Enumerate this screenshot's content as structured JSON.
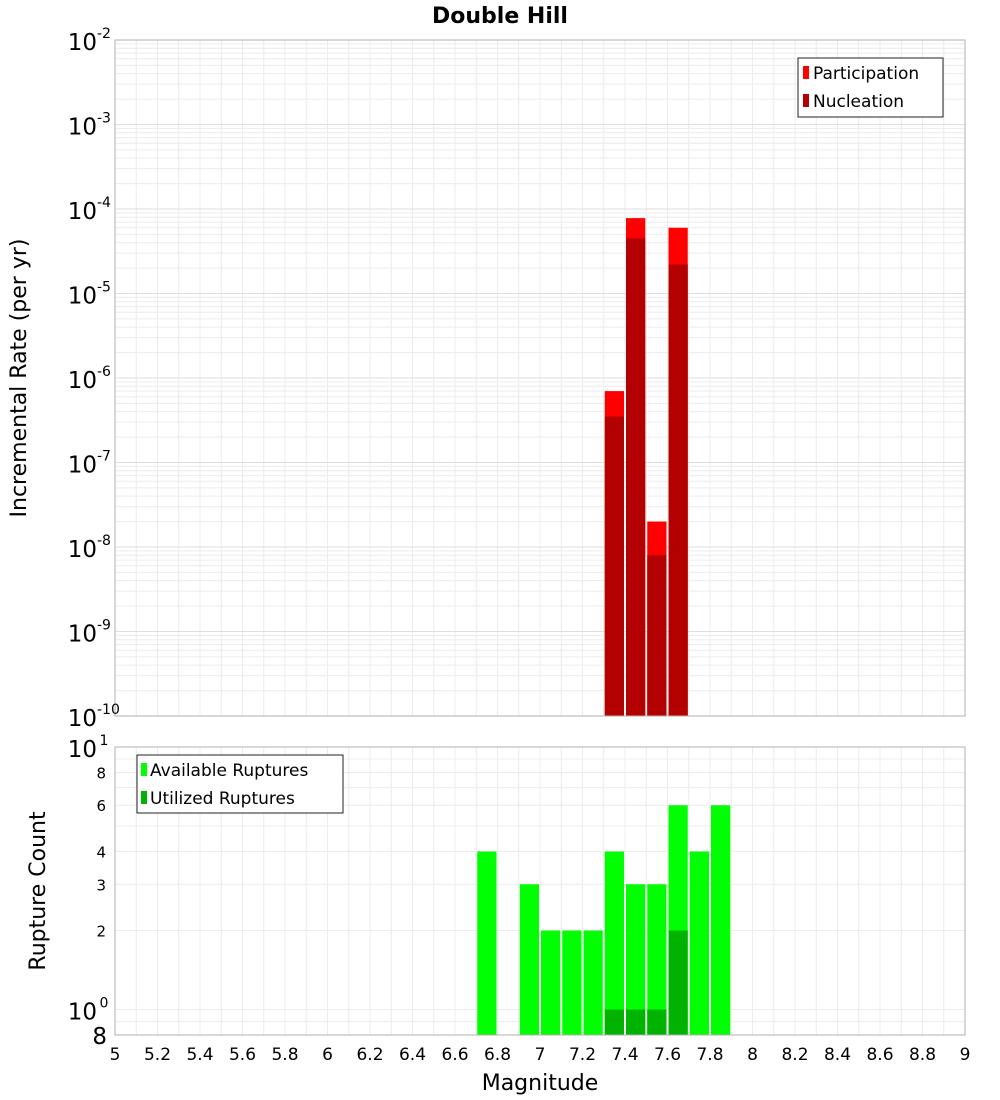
{
  "chart_data": [
    {
      "type": "bar",
      "title": "Double Hill",
      "xlabel": "",
      "ylabel": "Incremental Rate (per yr)",
      "yscale": "log",
      "ylim": [
        1e-10,
        0.01
      ],
      "xlim": [
        5,
        9
      ],
      "y_ticks": [
        {
          "base": "10",
          "exp": "-2",
          "value": 0.01
        },
        {
          "base": "10",
          "exp": "-3",
          "value": 0.001
        },
        {
          "base": "10",
          "exp": "-4",
          "value": 0.0001
        },
        {
          "base": "10",
          "exp": "-5",
          "value": 1e-05
        },
        {
          "base": "10",
          "exp": "-6",
          "value": 1e-06
        },
        {
          "base": "10",
          "exp": "-7",
          "value": 1e-07
        },
        {
          "base": "10",
          "exp": "-8",
          "value": 1e-08
        },
        {
          "base": "10",
          "exp": "-9",
          "value": 1e-09
        },
        {
          "base": "10",
          "exp": "-10",
          "value": 1e-10
        }
      ],
      "bar_width": 0.1,
      "legend_position": "top-right",
      "series": [
        {
          "name": "Participation",
          "color": "#ff0000",
          "x": [
            7.35,
            7.45,
            7.55,
            7.65
          ],
          "values": [
            7e-07,
            7.8e-05,
            2e-08,
            6e-05
          ]
        },
        {
          "name": "Nucleation",
          "color": "#b30000",
          "x": [
            7.35,
            7.45,
            7.55,
            7.65
          ],
          "values": [
            3.5e-07,
            4.5e-05,
            8e-09,
            2.2e-05
          ]
        }
      ]
    },
    {
      "type": "bar",
      "xlabel": "Magnitude",
      "ylabel": "Rupture Count",
      "yscale": "log",
      "ylim": [
        0.8,
        10
      ],
      "xlim": [
        5,
        9
      ],
      "x_ticks": [
        "5",
        "5.2",
        "5.4",
        "5.6",
        "5.8",
        "6",
        "6.2",
        "6.4",
        "6.6",
        "6.8",
        "7",
        "7.2",
        "7.4",
        "7.6",
        "7.8",
        "8",
        "8.2",
        "8.4",
        "8.6",
        "8.8",
        "9"
      ],
      "y_major_ticks": [
        {
          "base": "10",
          "exp": "1",
          "value": 10
        },
        {
          "base": "10",
          "exp": "0",
          "value": 1
        }
      ],
      "y_minor_ticks": [
        {
          "label": "8",
          "value": 8
        },
        {
          "label": "6",
          "value": 6
        },
        {
          "label": "4",
          "value": 4
        },
        {
          "label": "3",
          "value": 3
        },
        {
          "label": "2",
          "value": 2
        },
        {
          "label": "8",
          "value": 0.8
        }
      ],
      "bar_width": 0.1,
      "legend_position": "top-left",
      "series": [
        {
          "name": "Available Ruptures",
          "color": "#00ff00",
          "x": [
            6.75,
            6.95,
            7.05,
            7.15,
            7.25,
            7.35,
            7.45,
            7.55,
            7.65,
            7.75,
            7.85
          ],
          "values": [
            4,
            3,
            2,
            2,
            2,
            4,
            3,
            3,
            6,
            4,
            6
          ]
        },
        {
          "name": "Utilized Ruptures",
          "color": "#00b300",
          "x": [
            7.35,
            7.45,
            7.55,
            7.65
          ],
          "values": [
            1,
            1,
            1,
            2
          ]
        }
      ]
    }
  ]
}
